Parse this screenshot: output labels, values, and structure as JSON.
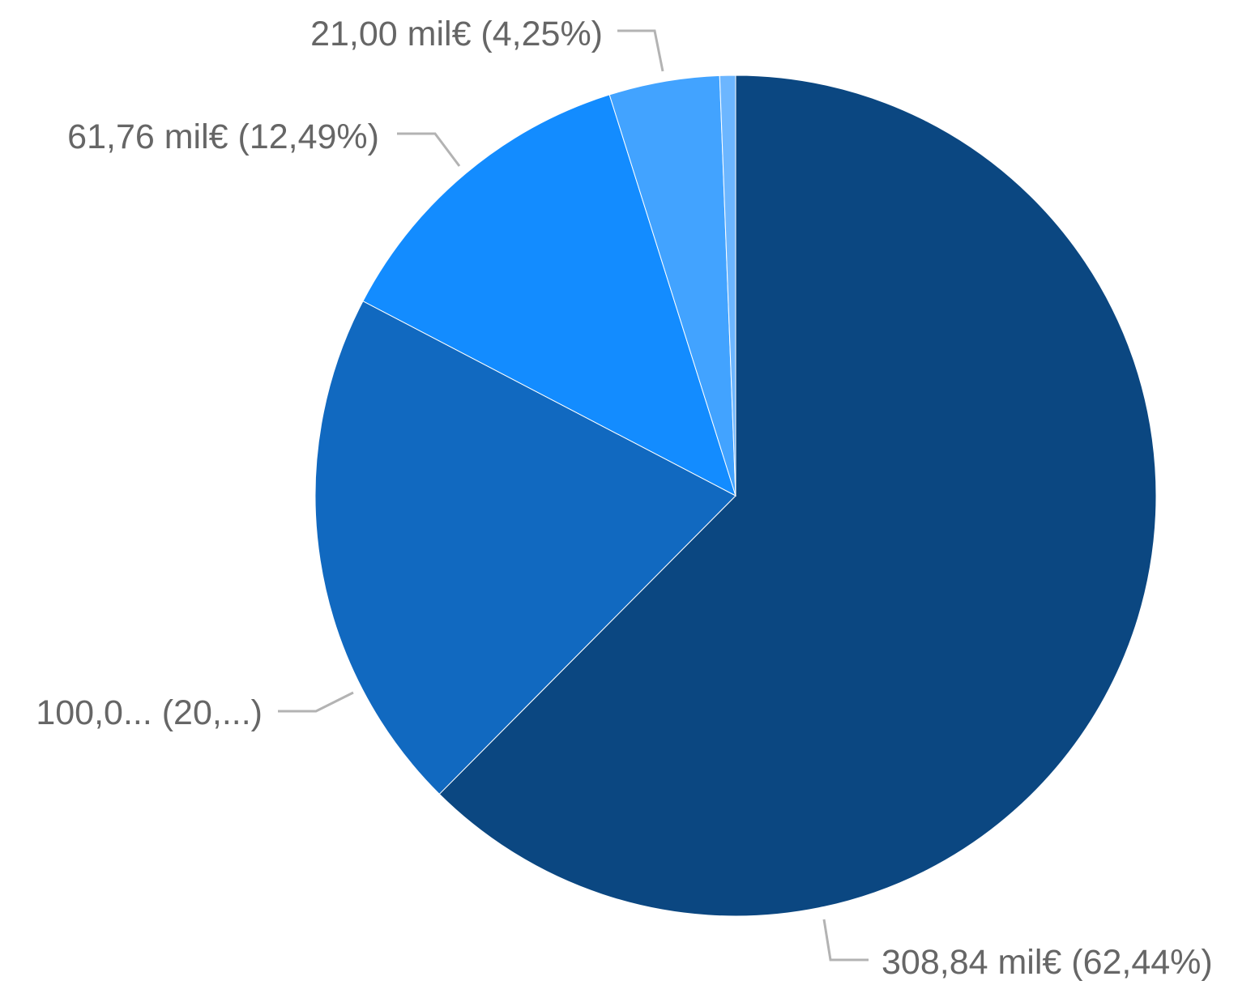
{
  "chart_data": {
    "type": "pie",
    "start": "top",
    "direction": "clockwise",
    "slices": [
      {
        "value": 308.84,
        "percent": 62.44,
        "color": "#0b4781",
        "label": "308,84 mil€ (62,44%)"
      },
      {
        "value": 100.0,
        "percent": 20.22,
        "color": "#1169c0",
        "label": "100,0... (20,...)"
      },
      {
        "value": 61.76,
        "percent": 12.49,
        "color": "#138cff",
        "label": "61,76 mil€ (12,49%)"
      },
      {
        "value": 21.0,
        "percent": 4.25,
        "color": "#42a3ff",
        "label": "21,00 mil€ (4,25%)"
      },
      {
        "value": 3.0,
        "percent": 0.6,
        "color": "#6cb6ff",
        "label": ""
      }
    ],
    "legend": "none"
  }
}
